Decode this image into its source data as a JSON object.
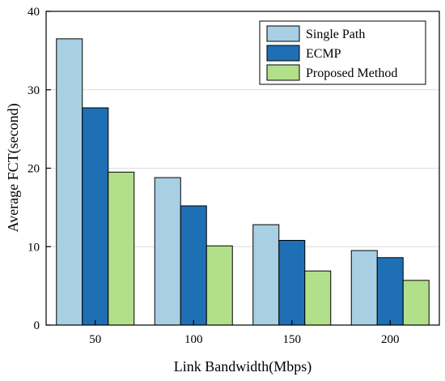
{
  "chart_data": {
    "type": "bar",
    "title": "",
    "xlabel": "Link Bandwidth(Mbps)",
    "ylabel": "Average FCT(second)",
    "categories": [
      "50",
      "100",
      "150",
      "200"
    ],
    "ylim": [
      0,
      40
    ],
    "yticks": [
      "0",
      "10",
      "20",
      "30",
      "40"
    ],
    "grid": true,
    "legend_position": "top-right",
    "series": [
      {
        "name": "Single Path",
        "color": "#a8cfe4",
        "values": [
          36.5,
          18.8,
          12.8,
          9.5
        ]
      },
      {
        "name": "ECMP",
        "color": "#1f6fb4",
        "values": [
          27.7,
          15.2,
          10.8,
          8.6
        ]
      },
      {
        "name": "Proposed Method",
        "color": "#b2df8a",
        "values": [
          19.5,
          10.1,
          6.9,
          5.7
        ]
      }
    ]
  }
}
